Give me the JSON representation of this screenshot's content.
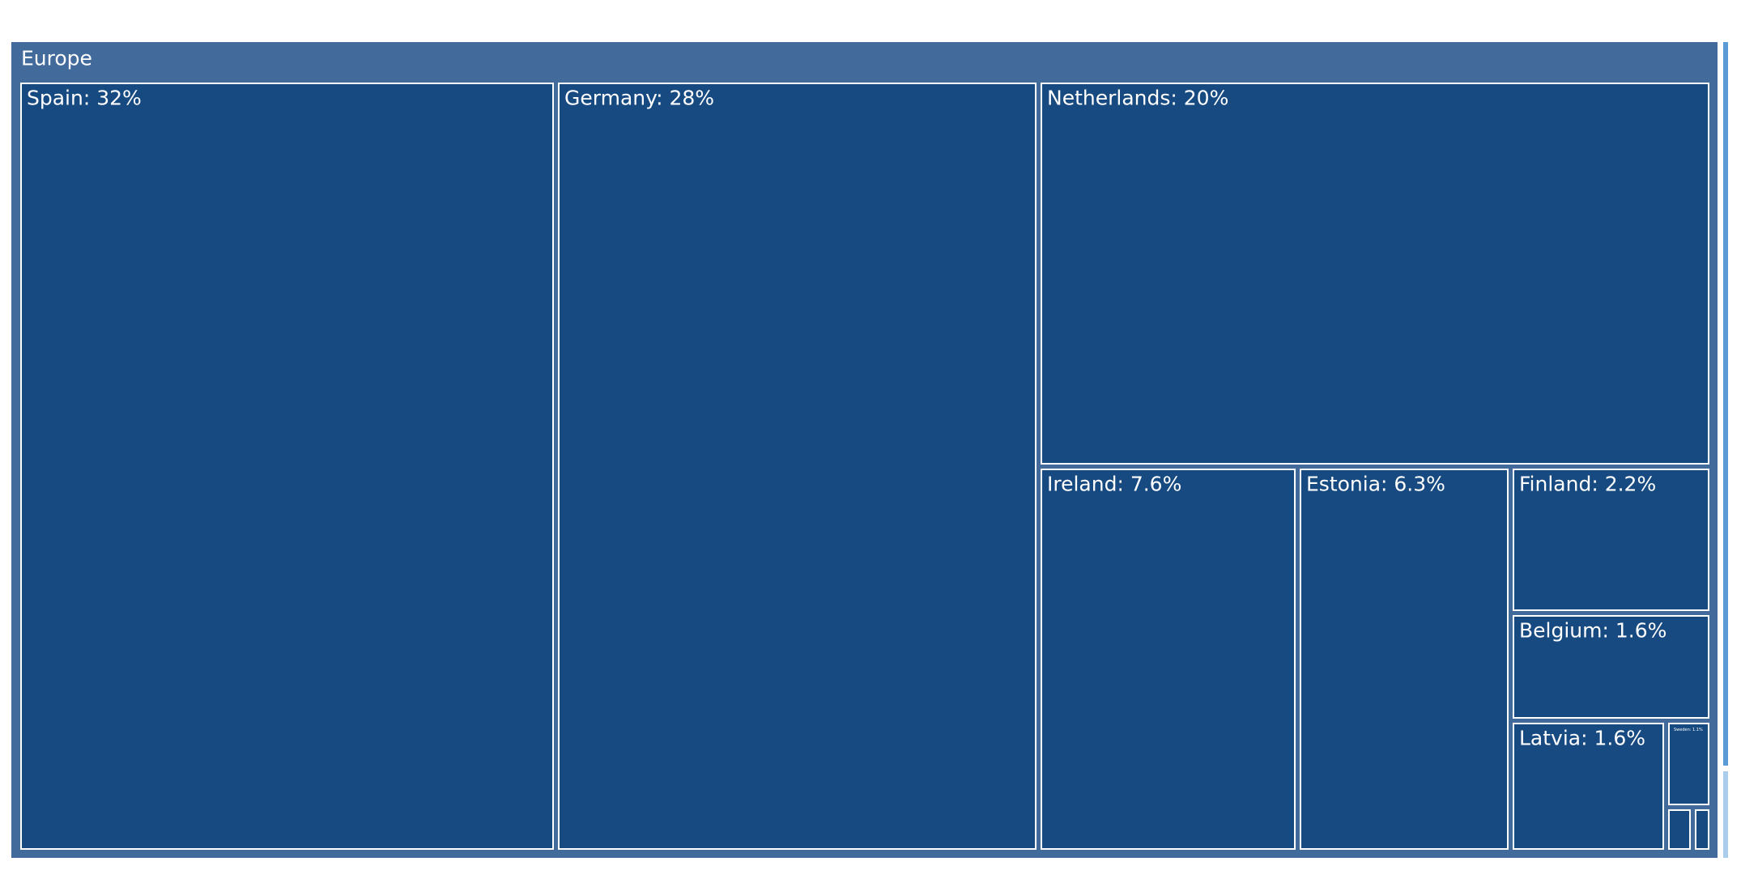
{
  "chart_data": {
    "type": "treemap",
    "root": "Europe",
    "categories": [
      "Spain",
      "Germany",
      "Netherlands",
      "Ireland",
      "Estonia",
      "Finland",
      "Belgium",
      "Latvia",
      "Sweden",
      null,
      null
    ],
    "values": [
      32,
      28,
      20,
      7.6,
      6.3,
      2.2,
      1.6,
      1.6,
      1.1,
      0.3,
      0.2
    ],
    "value_labels": [
      "Spain: 32%",
      "Germany: 28%",
      "Netherlands: 20%",
      "Ireland: 7.6%",
      "Estonia: 6.3%",
      "Finland: 2.2%",
      "Belgium: 1.6%",
      "Latvia: 1.6%",
      "Sweden: 1.1%",
      null,
      null
    ],
    "root_color": "#426a9a",
    "color": "#174a80"
  }
}
